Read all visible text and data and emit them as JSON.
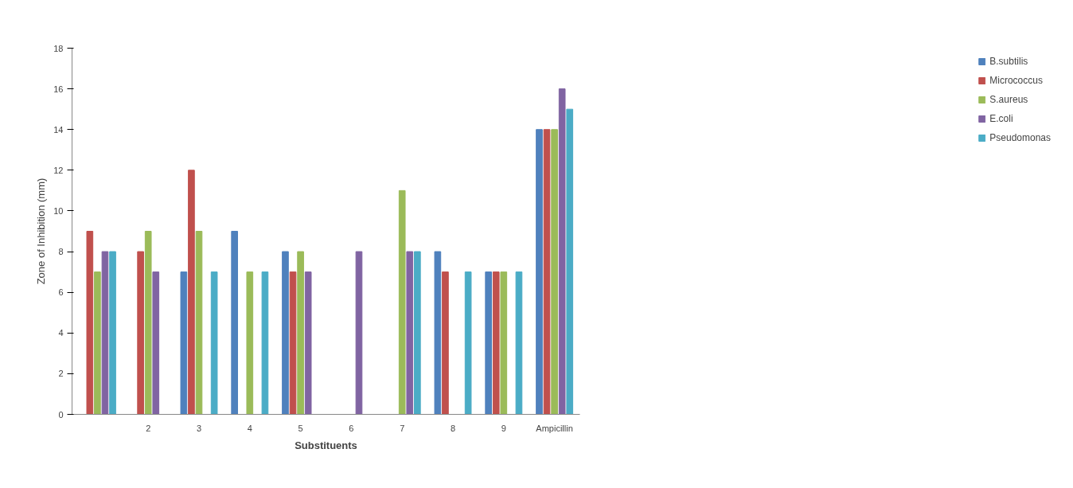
{
  "chart_data": {
    "type": "bar",
    "xlabel": "Substituents",
    "ylabel": "Zone of Inhibition (mm)",
    "categories": [
      null,
      "2",
      "3",
      "4",
      "5",
      "6",
      "7",
      "8",
      "9",
      "Ampicillin"
    ],
    "series": [
      {
        "name": "B.subtilis",
        "color": "#4f81bd",
        "values": [
          null,
          null,
          7,
          9,
          8,
          null,
          null,
          8,
          7,
          14
        ]
      },
      {
        "name": "Micrococcus",
        "color": "#c0504d",
        "values": [
          9,
          8,
          12,
          null,
          7,
          null,
          null,
          7,
          7,
          14
        ]
      },
      {
        "name": "S.aureus",
        "color": "#9bbb59",
        "values": [
          7,
          9,
          9,
          7,
          8,
          null,
          11,
          null,
          7,
          14
        ]
      },
      {
        "name": "E.coli",
        "color": "#8064a2",
        "values": [
          8,
          7,
          null,
          null,
          7,
          8,
          8,
          null,
          null,
          16
        ]
      },
      {
        "name": "Pseudomonas",
        "color": "#4bacc6",
        "values": [
          8,
          null,
          7,
          7,
          null,
          null,
          8,
          7,
          7,
          15
        ]
      }
    ],
    "ylim": [
      0,
      18
    ],
    "yticks": [
      0,
      2,
      4,
      6,
      8,
      10,
      12,
      14,
      16,
      18
    ],
    "grid": false,
    "legend": "right"
  }
}
